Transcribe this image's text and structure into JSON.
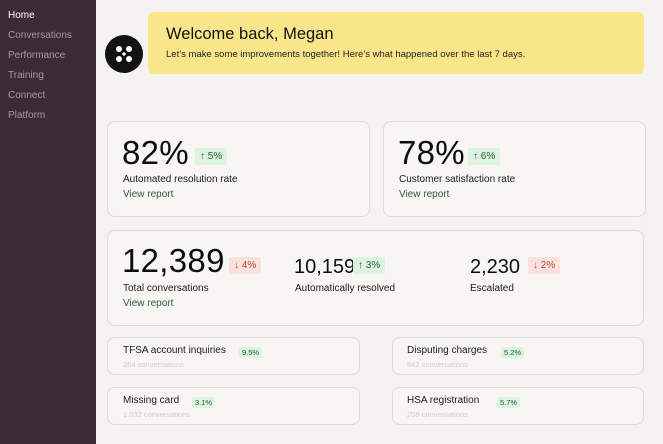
{
  "sidebar": {
    "items": [
      {
        "label": "Home",
        "active": true
      },
      {
        "label": "Conversations",
        "active": false
      },
      {
        "label": "Performance",
        "active": false
      },
      {
        "label": "Training",
        "active": false
      },
      {
        "label": "Connect",
        "active": false
      },
      {
        "label": "Platform",
        "active": false
      }
    ]
  },
  "welcome": {
    "title": "Welcome back, Megan",
    "subtitle": "Let’s make some improvements together! Here’s what happened over the last 7 days."
  },
  "cards": {
    "automated": {
      "value": "82%",
      "change": "5%",
      "direction": "up",
      "label": "Automated resolution rate",
      "link": "View report"
    },
    "satisfaction": {
      "value": "78%",
      "change": "6%",
      "direction": "up",
      "label": "Customer satisfaction rate",
      "link": "View report"
    },
    "conversations": {
      "total": {
        "value": "12,389",
        "change": "4%",
        "direction": "down",
        "label": "Total conversations",
        "link": "View report"
      },
      "resolved": {
        "value": "10,159",
        "change": "3%",
        "direction": "up",
        "label": "Automatically resolved"
      },
      "escalated": {
        "value": "2,230",
        "change": "2%",
        "direction": "down",
        "label": "Escalated"
      }
    }
  },
  "topics": [
    {
      "title": "TFSA account inquiries",
      "percent": "9.5%",
      "sub": "264 conversations"
    },
    {
      "title": "Disputing charges",
      "percent": "5.2%",
      "sub": "842 conversations"
    },
    {
      "title": "Missing card",
      "percent": "3.1%",
      "sub": "1,032 conversations"
    },
    {
      "title": "HSA registration",
      "percent": "5.7%",
      "sub": "208 conversations"
    }
  ],
  "colors": {
    "sidebar_bg": "#3a2b36",
    "welcome_bg": "#f9e68a",
    "up_badge_bg": "#dcf3df",
    "down_badge_bg": "#fbe1dd",
    "link": "#2d5a34"
  },
  "icons": {
    "up": "↑",
    "down": "↓"
  }
}
